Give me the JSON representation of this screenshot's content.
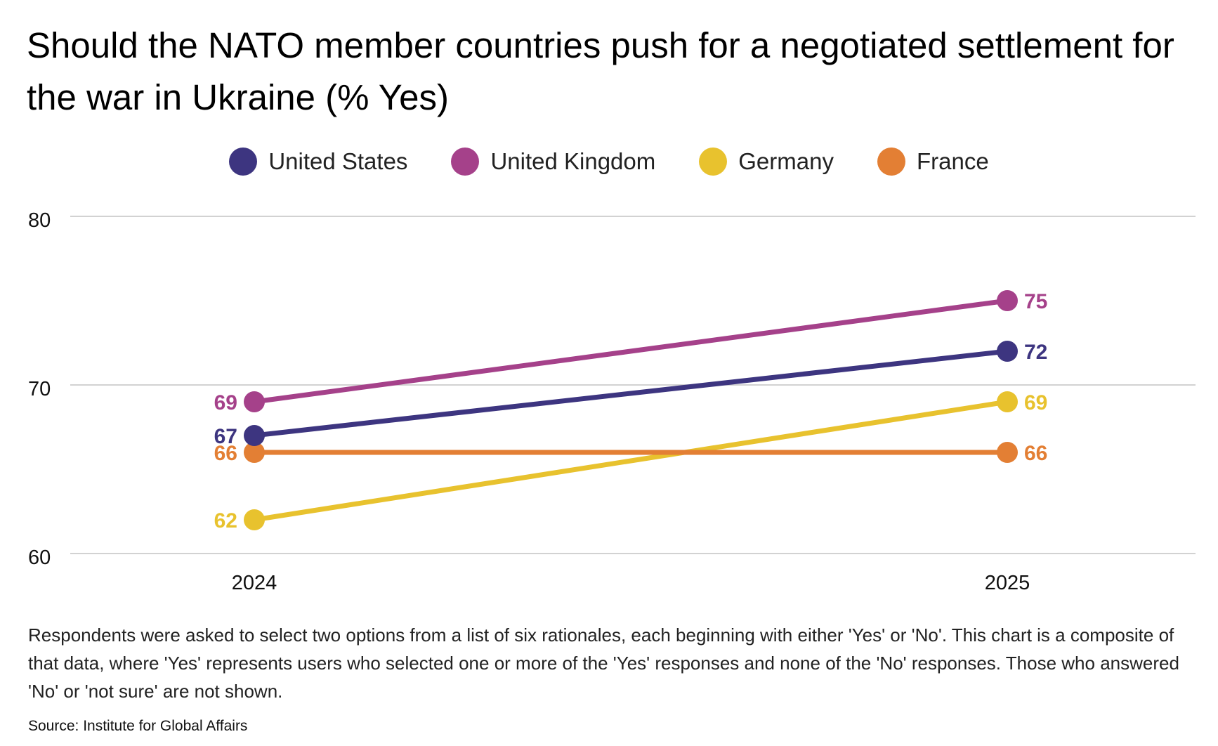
{
  "chart_data": {
    "type": "line",
    "title": "Should the NATO member countries push for a negotiated settlement for the war in Ukraine (% Yes)",
    "x": [
      "2024",
      "2025"
    ],
    "ylim": [
      60,
      80
    ],
    "yticks": [
      "60",
      "70",
      "80"
    ],
    "grid": true,
    "legend_position": "top-center",
    "series": [
      {
        "name": "United States",
        "color": "#3d3580",
        "values": [
          67,
          72
        ]
      },
      {
        "name": "United Kingdom",
        "color": "#a5418a",
        "values": [
          69,
          75
        ]
      },
      {
        "name": "Germany",
        "color": "#e8c22e",
        "values": [
          62,
          69
        ]
      },
      {
        "name": "France",
        "color": "#e37f34",
        "values": [
          66,
          66
        ]
      }
    ]
  },
  "footer": {
    "note": "Respondents were asked to select two options from a list of six rationales, each beginning with either 'Yes' or 'No'. This chart is a composite of that data, where 'Yes' represents users who selected one or more of the 'Yes' responses and none of the 'No' responses. Those who answered 'No' or 'not sure' are not shown.",
    "source": "Source: Institute for Global Affairs"
  }
}
